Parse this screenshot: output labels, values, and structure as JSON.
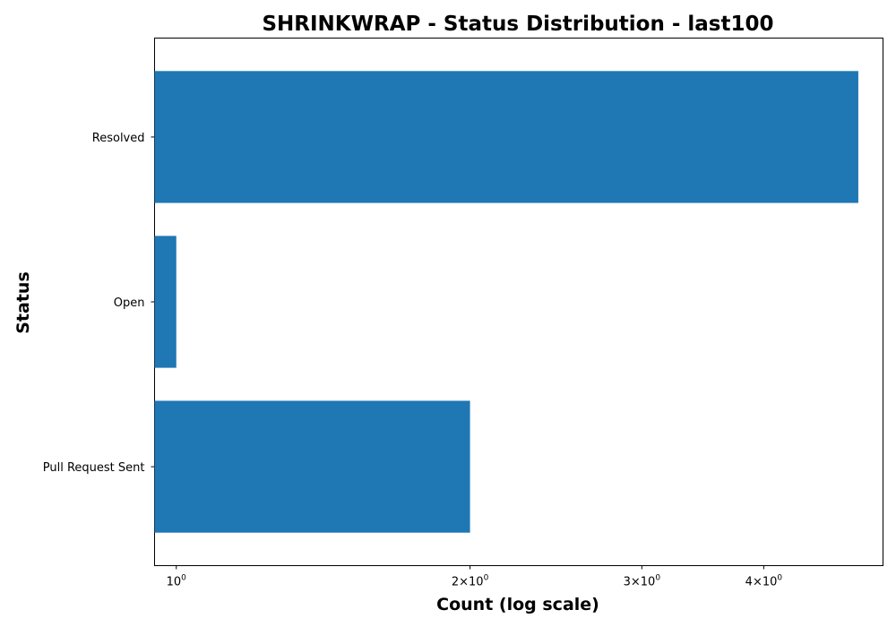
{
  "chart_data": {
    "type": "bar",
    "orientation": "horizontal",
    "title": "SHRINKWRAP - Status Distribution - last100",
    "xlabel": "Count (log scale)",
    "ylabel": "Status",
    "x_scale": "log",
    "xlim": [
      0.95,
      5.3
    ],
    "categories": [
      "Resolved",
      "Open",
      "Pull Request Sent"
    ],
    "values": [
      5,
      1,
      2
    ],
    "x_ticks": [
      {
        "value": 1,
        "base": "10",
        "exp": "0",
        "prefix": ""
      },
      {
        "value": 2,
        "base": "10",
        "exp": "0",
        "prefix": "2×"
      },
      {
        "value": 3,
        "base": "10",
        "exp": "0",
        "prefix": "3×"
      },
      {
        "value": 4,
        "base": "10",
        "exp": "0",
        "prefix": "4×"
      }
    ],
    "bar_color": "#1f77b4",
    "grid": false,
    "legend": "none"
  }
}
